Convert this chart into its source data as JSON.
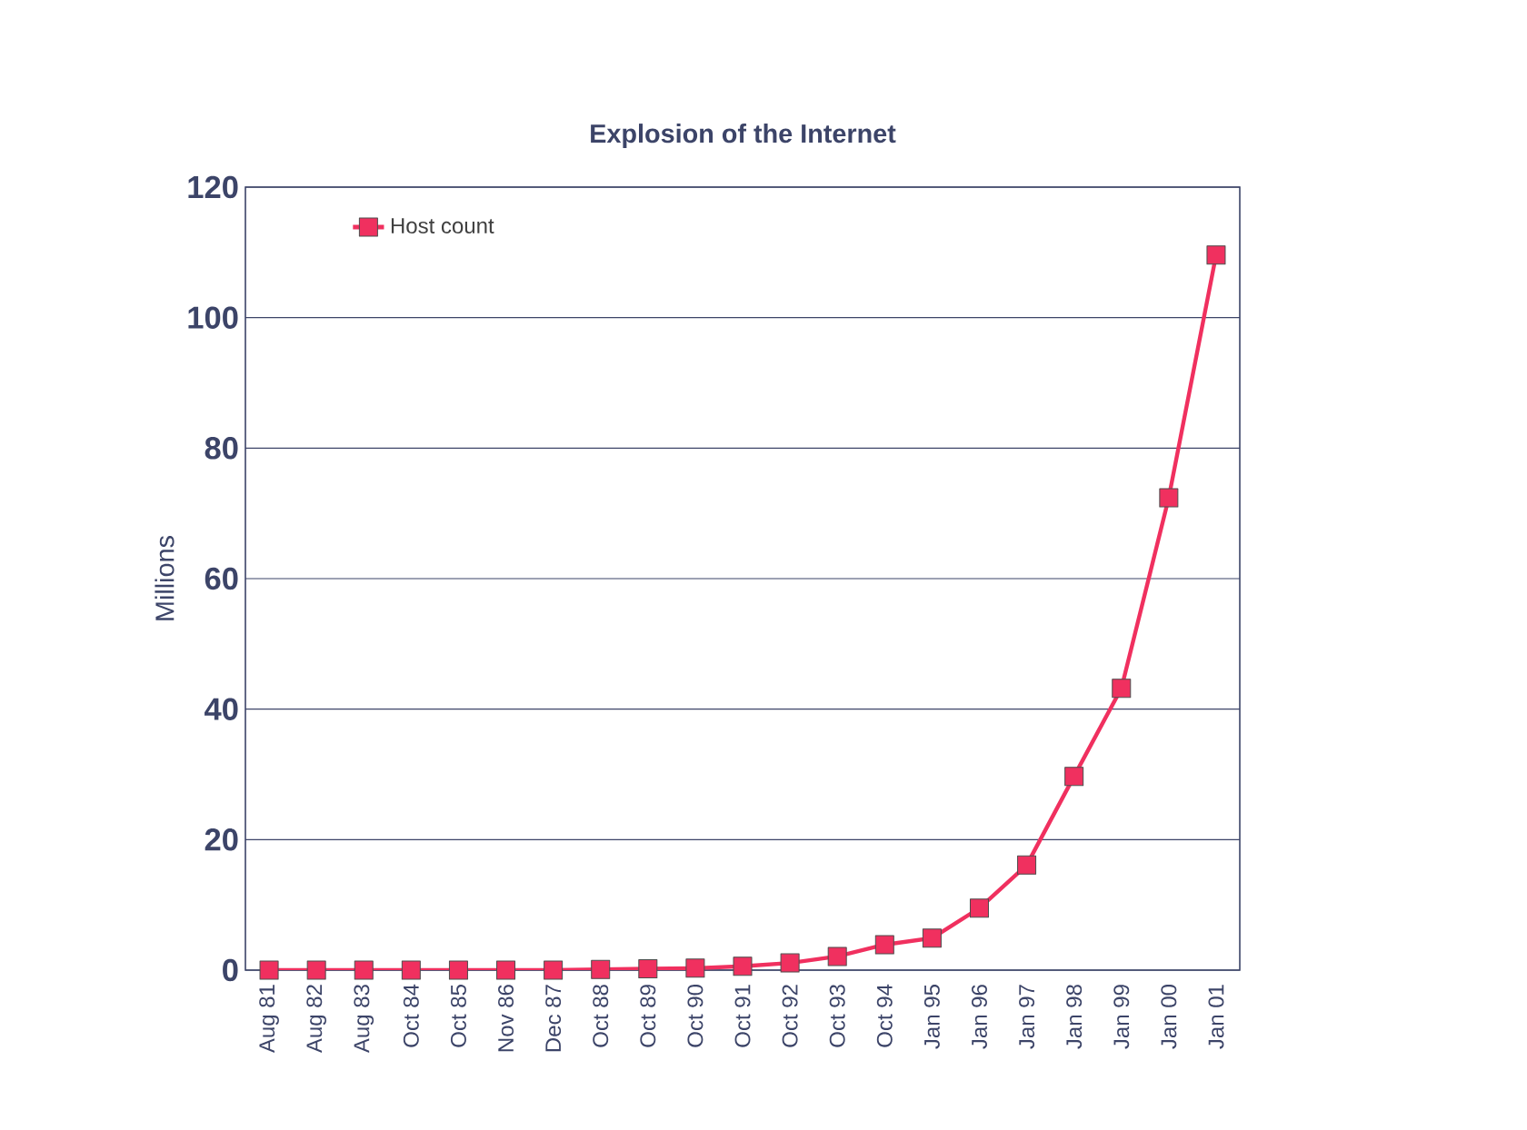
{
  "chart_data": {
    "type": "line",
    "title": "Explosion of the Internet",
    "ylabel": "Millions",
    "categories": [
      "Aug 81",
      "Aug 82",
      "Aug 83",
      "Oct 84",
      "Oct 85",
      "Nov 86",
      "Dec 87",
      "Oct 88",
      "Oct 89",
      "Oct 90",
      "Oct 91",
      "Oct 92",
      "Oct 93",
      "Oct 94",
      "Jan 95",
      "Jan 96",
      "Jan 97",
      "Jan 98",
      "Jan 99",
      "Jan 00",
      "Jan 01"
    ],
    "series": [
      {
        "name": "Host count",
        "color": "#f0305f",
        "values": [
          0,
          0,
          0,
          0,
          0,
          0,
          0,
          0.1,
          0.2,
          0.3,
          0.6,
          1.1,
          2.1,
          3.9,
          4.9,
          9.5,
          16.1,
          29.7,
          43.2,
          72.4,
          109.6
        ]
      }
    ],
    "ylim": [
      0,
      120
    ],
    "yticks": [
      0,
      20,
      40,
      60,
      80,
      100,
      120
    ],
    "grid": "y",
    "legend": "top left",
    "marker": "square",
    "line_style": "solid"
  }
}
